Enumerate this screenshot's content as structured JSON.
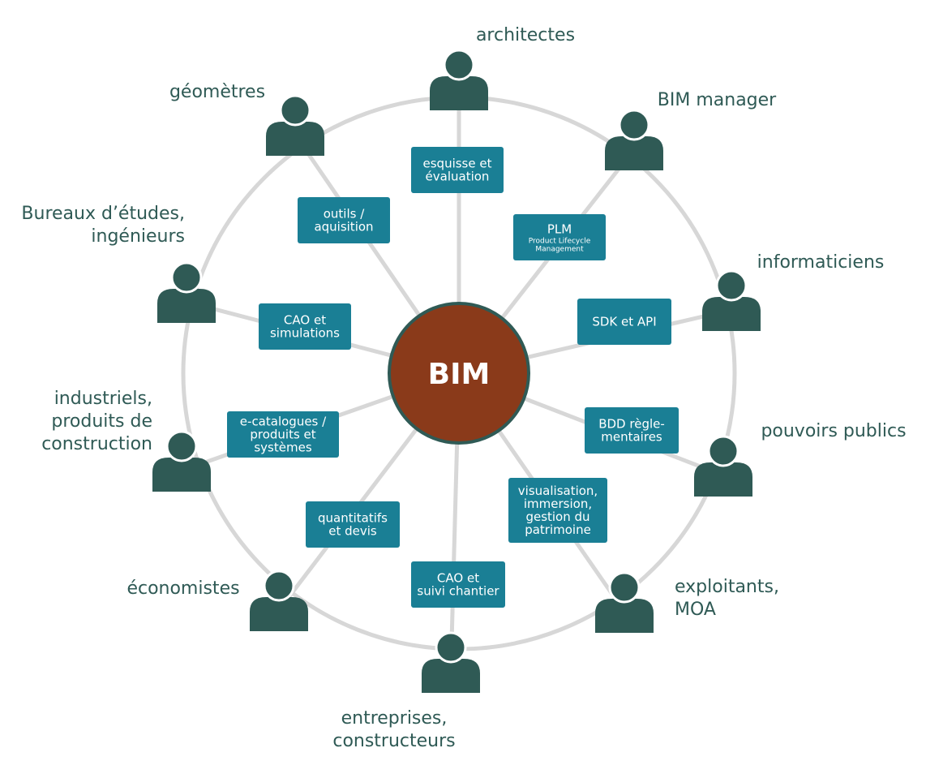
{
  "colors": {
    "ring": "#d7d7d7",
    "person": "#2f5a55",
    "box": "#1a7f95",
    "center_fill": "#8a3a1a",
    "center_stroke": "#2f5a55",
    "label": "#2f5a55"
  },
  "center": {
    "label": "BIM"
  },
  "roles": [
    {
      "id": "architectes",
      "lines": [
        "architectes"
      ],
      "icon": "person-icon"
    },
    {
      "id": "bim-manager",
      "lines": [
        "BIM manager"
      ],
      "icon": "person-icon"
    },
    {
      "id": "informaticiens",
      "lines": [
        "informaticiens"
      ],
      "icon": "person-icon"
    },
    {
      "id": "pouvoirs-publics",
      "lines": [
        "pouvoirs publics"
      ],
      "icon": "person-icon"
    },
    {
      "id": "exploitants",
      "lines": [
        "exploitants,",
        "MOA"
      ],
      "icon": "person-icon"
    },
    {
      "id": "entreprises",
      "lines": [
        "entreprises,",
        "constructeurs"
      ],
      "icon": "person-icon"
    },
    {
      "id": "economistes",
      "lines": [
        "économistes"
      ],
      "icon": "person-icon"
    },
    {
      "id": "industriels",
      "lines": [
        "industriels,",
        "produits de",
        "construction"
      ],
      "icon": "person-icon"
    },
    {
      "id": "bureaux",
      "lines": [
        "Bureaux d’études,",
        "ingénieurs"
      ],
      "icon": "person-icon"
    },
    {
      "id": "geometres",
      "lines": [
        "géomètres"
      ],
      "icon": "person-icon"
    }
  ],
  "tools": [
    {
      "id": "esquisse",
      "lines": [
        "esquisse et",
        "évaluation"
      ]
    },
    {
      "id": "plm",
      "lines": [
        "PLM"
      ],
      "sublines": [
        "Product Lifecycle",
        "Management"
      ]
    },
    {
      "id": "sdk",
      "lines": [
        "SDK et API"
      ]
    },
    {
      "id": "bdd",
      "lines": [
        "BDD règle-",
        "mentaires"
      ]
    },
    {
      "id": "visualisation",
      "lines": [
        "visualisation,",
        "immersion,",
        "gestion du",
        "patrimoine"
      ]
    },
    {
      "id": "cao-chantier",
      "lines": [
        "CAO et",
        "suivi chantier"
      ]
    },
    {
      "id": "quantitatifs",
      "lines": [
        "quantitatifs",
        "et devis"
      ]
    },
    {
      "id": "e-catalogues",
      "lines": [
        "e-catalogues /",
        "produits et",
        "systèmes"
      ]
    },
    {
      "id": "cao-simulations",
      "lines": [
        "CAO et",
        "simulations"
      ]
    },
    {
      "id": "outils",
      "lines": [
        "outils /",
        "aquisition"
      ]
    }
  ]
}
